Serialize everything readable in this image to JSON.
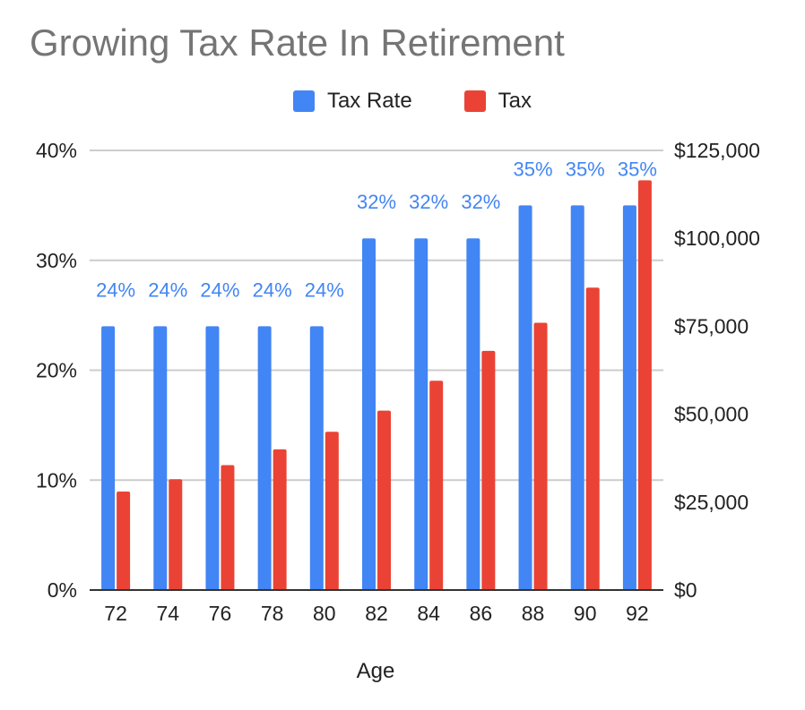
{
  "chart_data": {
    "type": "bar",
    "title": "Growing Tax Rate In Retirement",
    "xlabel": "Age",
    "ylabel": "",
    "y2label": "",
    "categories": [
      "72",
      "74",
      "76",
      "78",
      "80",
      "82",
      "84",
      "86",
      "88",
      "90",
      "92"
    ],
    "series": [
      {
        "name": "Tax Rate",
        "axis": "left",
        "color": "#4285f4",
        "values": [
          24,
          24,
          24,
          24,
          24,
          32,
          32,
          32,
          35,
          35,
          35
        ],
        "data_labels": [
          "24%",
          "24%",
          "24%",
          "24%",
          "24%",
          "32%",
          "32%",
          "32%",
          "35%",
          "35%",
          "35%"
        ]
      },
      {
        "name": "Tax",
        "axis": "right",
        "color": "#ea4335",
        "values": [
          28000,
          31500,
          35500,
          40000,
          45000,
          51000,
          59500,
          68000,
          76000,
          86000,
          116500
        ]
      }
    ],
    "ylim": [
      0,
      40
    ],
    "y2lim": [
      0,
      125000
    ],
    "left_ticks": [
      "0%",
      "10%",
      "20%",
      "30%",
      "40%"
    ],
    "right_ticks": [
      "$0",
      "$25,000",
      "$50,000",
      "$75,000",
      "$100,000",
      "$125,000"
    ],
    "grid": true,
    "legend_position": "top",
    "data_label_color": "#4285f4"
  }
}
